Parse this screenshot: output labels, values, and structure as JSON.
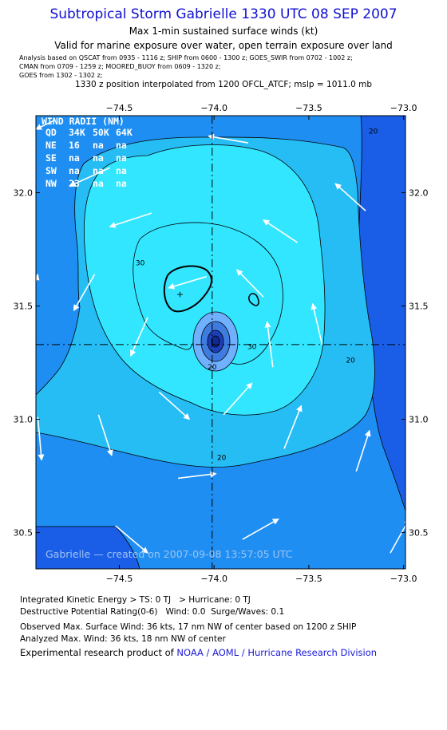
{
  "header": {
    "title": "Subtropical Storm Gabrielle 1330 UTC 08 SEP 2007",
    "subtitle": "Max 1-min sustained surface winds (kt)",
    "validity": "Valid for marine exposure over water, open terrain exposure over land",
    "sources": [
      "Analysis based on  QSCAT from 0935 - 1116 z;  SHIP from 0600 - 1300 z;  GOES_SWIR from 0702 - 1002 z;",
      "CMAN from 0709 - 1259 z;  MOORED_BUOY from 0609 - 1320 z;",
      "GOES from 1302 - 1302 z;"
    ],
    "position_note": "1330 z position interpolated from 1200 OFCL_ATCF; mslp = 1011.0 mb"
  },
  "colors": {
    "title": "#1010d0",
    "band_lt20": "#1a5ee8",
    "band_20_30": "#1f8ef2",
    "band_30_40": "#26bdf5",
    "band_ge40": "#33e6ff",
    "core_light": "#6fb0ff",
    "core_mid": "#3f7ce0",
    "core_dark": "#1c3fb8",
    "core_center": "#102a90"
  },
  "chart_data": {
    "type": "contour_map",
    "xlim": [
      -74.94,
      -72.99
    ],
    "ylim": [
      30.34,
      32.34
    ],
    "x_ticks": [
      -74.5,
      -74.0,
      -73.5,
      -73.0
    ],
    "x_tick_labels": [
      "−74.5",
      "−74.0",
      "−73.5",
      "−73.0"
    ],
    "y_ticks": [
      30.5,
      31.0,
      31.5,
      32.0
    ],
    "y_tick_labels": [
      "30.5",
      "31.0",
      "31.5",
      "32.0"
    ],
    "center": {
      "lon": -74.01,
      "lat": 31.33
    },
    "max_wind_marker": {
      "lon": -74.18,
      "lat": 31.55
    },
    "contour_levels": [
      20,
      30,
      40,
      50
    ],
    "contour_labels": [
      {
        "text": "20",
        "lon": -73.16,
        "lat": 32.26
      },
      {
        "text": "30",
        "lon": -74.39,
        "lat": 31.68
      },
      {
        "text": "20",
        "lon": -74.01,
        "lat": 31.22
      },
      {
        "text": "30",
        "lon": -73.8,
        "lat": 31.31
      },
      {
        "text": "20",
        "lon": -73.28,
        "lat": 31.25
      },
      {
        "text": "20",
        "lon": -73.96,
        "lat": 30.82
      }
    ],
    "wind_radii_table": {
      "title": "WIND RADII (NM)",
      "columns": [
        "QD",
        "34K",
        "50K",
        "64K"
      ],
      "rows": [
        [
          "NE",
          "16",
          "na",
          "na"
        ],
        [
          "SE",
          "na",
          "na",
          "na"
        ],
        [
          "SW",
          "na",
          "na",
          "na"
        ],
        [
          "NW",
          "23",
          "na",
          "na"
        ]
      ]
    },
    "wind_vectors": [
      {
        "lon": -74.84,
        "lat": 32.32,
        "u": -0.1,
        "v": -0.04
      },
      {
        "lon": -73.82,
        "lat": 32.22,
        "u": -0.21,
        "v": 0.03
      },
      {
        "lon": -74.55,
        "lat": 32.11,
        "u": -0.21,
        "v": -0.08
      },
      {
        "lon": -73.2,
        "lat": 31.92,
        "u": -0.16,
        "v": 0.12
      },
      {
        "lon": -74.33,
        "lat": 31.91,
        "u": -0.22,
        "v": -0.06
      },
      {
        "lon": -73.56,
        "lat": 31.78,
        "u": -0.18,
        "v": 0.1
      },
      {
        "lon": -74.94,
        "lat": 31.61,
        "u": 0.01,
        "v": 0.03
      },
      {
        "lon": -74.63,
        "lat": 31.64,
        "u": -0.11,
        "v": -0.16
      },
      {
        "lon": -74.04,
        "lat": 31.63,
        "u": -0.2,
        "v": -0.05
      },
      {
        "lon": -73.74,
        "lat": 31.54,
        "u": -0.14,
        "v": 0.12
      },
      {
        "lon": -73.43,
        "lat": 31.33,
        "u": -0.05,
        "v": 0.18
      },
      {
        "lon": -74.35,
        "lat": 31.45,
        "u": -0.09,
        "v": -0.17
      },
      {
        "lon": -73.69,
        "lat": 31.23,
        "u": -0.03,
        "v": 0.2
      },
      {
        "lon": -73.95,
        "lat": 31.02,
        "u": 0.15,
        "v": 0.14
      },
      {
        "lon": -74.29,
        "lat": 31.12,
        "u": 0.16,
        "v": -0.12
      },
      {
        "lon": -73.63,
        "lat": 30.87,
        "u": 0.09,
        "v": 0.19
      },
      {
        "lon": -74.93,
        "lat": 31.01,
        "u": 0.02,
        "v": -0.19
      },
      {
        "lon": -74.61,
        "lat": 31.02,
        "u": 0.07,
        "v": -0.18
      },
      {
        "lon": -73.25,
        "lat": 30.77,
        "u": 0.07,
        "v": 0.18
      },
      {
        "lon": -74.19,
        "lat": 30.74,
        "u": 0.2,
        "v": 0.02
      },
      {
        "lon": -74.52,
        "lat": 30.53,
        "u": 0.17,
        "v": -0.12
      },
      {
        "lon": -73.85,
        "lat": 30.47,
        "u": 0.19,
        "v": 0.09
      },
      {
        "lon": -73.07,
        "lat": 30.41,
        "u": 0.1,
        "v": 0.15
      }
    ],
    "watermark": "Gabrielle — created on 2007-09-08 13:57:05 UTC"
  },
  "footer": {
    "ike_label": "Integrated Kinetic Energy > TS: 0 TJ",
    "ike_hurricane": "> Hurricane: 0 TJ",
    "dpr_label": "Destructive Potential Rating(0-6)",
    "dpr_wind": "Wind: 0.0",
    "dpr_surge": "Surge/Waves: 0.1",
    "observed_max": "Observed Max. Surface Wind: 36 kts, 17 nm NW of center based on 1200 z SHIP",
    "analyzed_max": "Analyzed Max. Wind: 36 kts, 18 nm NW of center",
    "product_prefix": "Experimental research product of",
    "product_org": "NOAA / AOML / Hurricane Research Division"
  }
}
